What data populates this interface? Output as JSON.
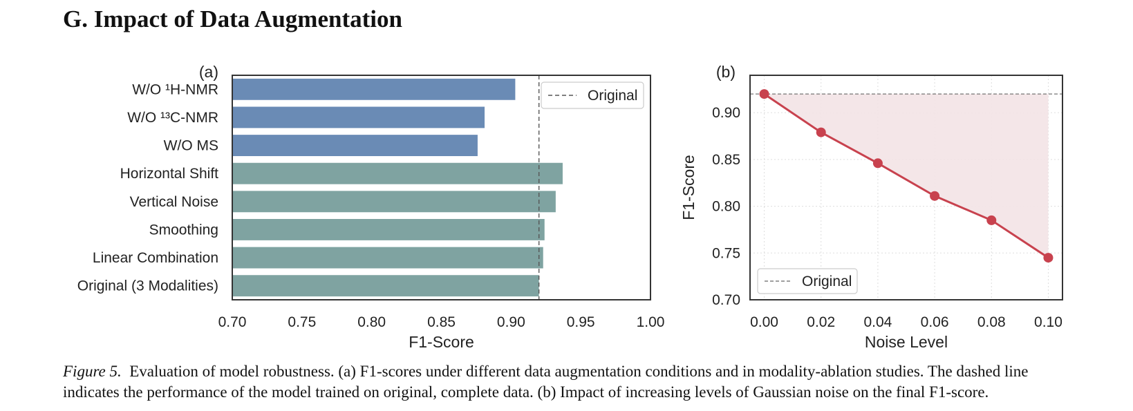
{
  "section_heading": "G. Impact of Data Augmentation",
  "caption": {
    "label": "Figure 5.",
    "text": "Evaluation of model robustness. (a) F1-scores under different data augmentation conditions and in modality-ablation studies. The dashed line indicates the performance of the model trained on original, complete data. (b) Impact of increasing levels of Gaussian noise on the final F1-score."
  },
  "chart_data": [
    {
      "type": "bar",
      "orientation": "horizontal",
      "panel_label": "(a)",
      "categories": [
        "W/O ¹H-NMR",
        "W/O ¹³C-NMR",
        "W/O MS",
        "Horizontal Shift",
        "Vertical Noise",
        "Smoothing",
        "Linear Combination",
        "Original (3 Modalities)"
      ],
      "values": [
        0.903,
        0.881,
        0.876,
        0.937,
        0.932,
        0.924,
        0.923,
        0.92
      ],
      "bar_colors": [
        "#6a8bb5",
        "#6a8bb5",
        "#6a8bb5",
        "#7fa3a1",
        "#7fa3a1",
        "#7fa3a1",
        "#7fa3a1",
        "#7fa3a1"
      ],
      "xlabel": "F1-Score",
      "xlim": [
        0.7,
        1.0
      ],
      "xticks": [
        "0.70",
        "0.75",
        "0.80",
        "0.85",
        "0.90",
        "0.95",
        "1.00"
      ],
      "reference_line": {
        "value": 0.92,
        "label": "Original",
        "style": "dashed"
      },
      "legend": {
        "position": "top-right",
        "entries": [
          "Original"
        ]
      }
    },
    {
      "type": "line",
      "panel_label": "(b)",
      "x": [
        0.0,
        0.02,
        0.04,
        0.06,
        0.08,
        0.1
      ],
      "y": [
        0.92,
        0.879,
        0.846,
        0.811,
        0.785,
        0.745
      ],
      "xticks": [
        "0.00",
        "0.02",
        "0.04",
        "0.06",
        "0.08",
        "0.10"
      ],
      "yticks": [
        "0.70",
        "0.75",
        "0.80",
        "0.85",
        "0.90"
      ],
      "xlabel": "Noise Level",
      "ylabel": "F1-Score",
      "xlim": [
        -0.005,
        0.105
      ],
      "ylim": [
        0.7,
        0.94
      ],
      "line_color": "#c8424e",
      "fill_color": "#f3e3e5",
      "reference_line": {
        "value": 0.92,
        "label": "Original",
        "style": "dashed"
      },
      "grid": true,
      "legend": {
        "position": "bottom-left",
        "entries": [
          "Original"
        ]
      }
    }
  ]
}
